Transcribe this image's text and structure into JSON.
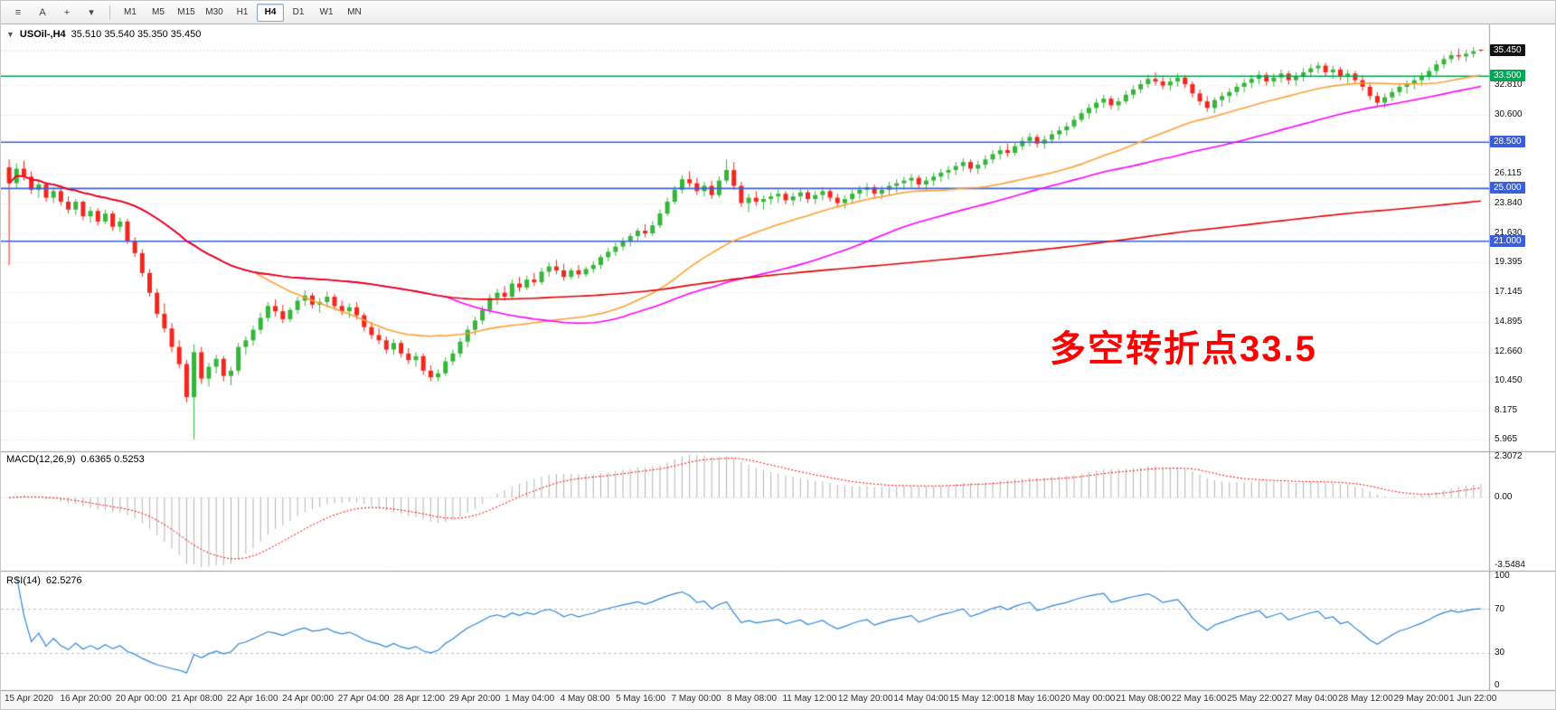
{
  "toolbar": {
    "icons": [
      {
        "name": "chart-bars-icon",
        "glyph": "≡"
      },
      {
        "name": "annotate-a-icon",
        "glyph": "A"
      },
      {
        "name": "crosshair-icon",
        "glyph": "+"
      },
      {
        "name": "indicator-dropdown-icon",
        "glyph": "▾"
      }
    ],
    "timeframes": [
      {
        "label": "M1",
        "selected": false
      },
      {
        "label": "M5",
        "selected": false
      },
      {
        "label": "M15",
        "selected": false
      },
      {
        "label": "M30",
        "selected": false
      },
      {
        "label": "H1",
        "selected": false
      },
      {
        "label": "H4",
        "selected": true
      },
      {
        "label": "D1",
        "selected": false
      },
      {
        "label": "W1",
        "selected": false
      },
      {
        "label": "MN",
        "selected": false
      }
    ]
  },
  "chart": {
    "collapse_icon": "▼",
    "title_symbol": "USOil-,H4",
    "ohlc": "35.510 35.540 35.350 35.450",
    "annotation": {
      "text": "多空转折点33.5",
      "color": "#FF0000"
    },
    "price_ticks": [
      32.81,
      30.6,
      26.115,
      23.84,
      21.63,
      19.395,
      17.145,
      14.895,
      12.66,
      10.45,
      8.175,
      5.965
    ],
    "current_price": {
      "label": "35.450",
      "bg": "#111111",
      "color": "#ffffff"
    }
  },
  "macd": {
    "label": "MACD(12,26,9)",
    "values": "0.6365 0.5253",
    "scale": {
      "top": "2.3072",
      "mid": "0.00",
      "bottom": "-3.5484"
    },
    "colors": {
      "histogram": "#b4b4b4",
      "signal": "#ff0000"
    }
  },
  "rsi": {
    "label": "RSI(14)",
    "value": "62.5276",
    "levels": [
      "100",
      "70",
      "30",
      "0"
    ],
    "color": "#2e86d8"
  },
  "time_axis": [
    "15 Apr 2020",
    "16 Apr 20:00",
    "20 Apr 00:00",
    "21 Apr 08:00",
    "22 Apr 16:00",
    "24 Apr 00:00",
    "27 Apr 04:00",
    "28 Apr 12:00",
    "29 Apr 20:00",
    "1 May 04:00",
    "4 May 08:00",
    "5 May 16:00",
    "7 May 00:00",
    "8 May 08:00",
    "11 May 12:00",
    "12 May 20:00",
    "14 May 04:00",
    "15 May 12:00",
    "18 May 16:00",
    "20 May 00:00",
    "21 May 08:00",
    "22 May 16:00",
    "25 May 22:00",
    "27 May 04:00",
    "28 May 12:00",
    "29 May 20:00",
    "1 Jun 22:00"
  ],
  "chart_data": {
    "type": "candlestick",
    "symbol": "USOil",
    "timeframe": "H4",
    "title": "USOil-,H4 35.510 35.540 35.350 35.450",
    "y_range": [
      5.3,
      37.15
    ],
    "up_color": "#35b53a",
    "down_color": "#f3261d",
    "grid": true,
    "hlines": [
      {
        "value": 33.5,
        "label": "33.500",
        "color": "#00A651"
      },
      {
        "value": 28.5,
        "label": "28.500",
        "color": "#3A5FD9"
      },
      {
        "value": 25.0,
        "label": "25.000",
        "color": "#3A5FD9"
      },
      {
        "value": 21.0,
        "label": "21.000",
        "color": "#3A5FD9"
      }
    ],
    "moving_averages": [
      {
        "name": "ma-fast-orange",
        "period": 34,
        "color": "#ffa033"
      },
      {
        "name": "ma-mid-magenta",
        "period": 60,
        "color": "#ff00ff"
      },
      {
        "name": "ma-slow-red",
        "period": 200,
        "color": "#e60000"
      }
    ],
    "indicators": {
      "macd": {
        "fast": 12,
        "slow": 26,
        "signal": 9,
        "current_main": 0.6365,
        "current_signal": 0.5253
      },
      "rsi": {
        "period": 14,
        "current": 62.5276,
        "levels": [
          70,
          30
        ]
      }
    },
    "candles": [
      [
        26.6,
        27.2,
        19.2,
        25.4
      ],
      [
        25.4,
        26.9,
        25.0,
        26.5
      ],
      [
        26.5,
        27.1,
        25.6,
        25.9
      ],
      [
        25.9,
        26.3,
        24.6,
        24.9
      ],
      [
        24.9,
        25.6,
        24.3,
        25.3
      ],
      [
        25.3,
        25.5,
        24.0,
        24.3
      ],
      [
        24.3,
        25.1,
        23.9,
        24.8
      ],
      [
        24.8,
        25.0,
        23.7,
        24.0
      ],
      [
        24.0,
        24.4,
        23.1,
        23.4
      ],
      [
        23.4,
        24.2,
        23.0,
        24.0
      ],
      [
        24.0,
        24.1,
        22.6,
        22.9
      ],
      [
        22.9,
        23.6,
        22.4,
        23.3
      ],
      [
        23.3,
        23.5,
        22.2,
        22.5
      ],
      [
        22.5,
        23.4,
        22.3,
        23.1
      ],
      [
        23.1,
        23.3,
        21.8,
        22.1
      ],
      [
        22.1,
        22.8,
        21.7,
        22.5
      ],
      [
        22.5,
        22.7,
        20.8,
        21.0
      ],
      [
        21.0,
        21.3,
        19.8,
        20.1
      ],
      [
        20.1,
        20.4,
        18.3,
        18.6
      ],
      [
        18.6,
        18.9,
        16.8,
        17.1
      ],
      [
        17.1,
        17.4,
        15.2,
        15.5
      ],
      [
        15.5,
        16.3,
        14.1,
        14.4
      ],
      [
        14.4,
        14.8,
        12.6,
        13.0
      ],
      [
        13.0,
        13.5,
        11.4,
        11.7
      ],
      [
        11.7,
        12.0,
        8.8,
        9.2
      ],
      [
        9.2,
        13.2,
        6.0,
        12.6
      ],
      [
        12.6,
        13.0,
        10.2,
        10.6
      ],
      [
        10.6,
        11.8,
        10.0,
        11.5
      ],
      [
        11.5,
        12.4,
        11.0,
        12.1
      ],
      [
        12.1,
        12.3,
        10.4,
        10.8
      ],
      [
        10.8,
        11.5,
        10.1,
        11.2
      ],
      [
        11.2,
        13.3,
        10.9,
        13.0
      ],
      [
        13.0,
        13.8,
        12.4,
        13.5
      ],
      [
        13.5,
        14.6,
        13.1,
        14.3
      ],
      [
        14.3,
        15.6,
        14.0,
        15.2
      ],
      [
        15.2,
        16.4,
        14.9,
        16.1
      ],
      [
        16.1,
        16.6,
        15.3,
        15.7
      ],
      [
        15.7,
        16.2,
        14.8,
        15.1
      ],
      [
        15.1,
        16.0,
        14.9,
        15.8
      ],
      [
        15.8,
        16.8,
        15.5,
        16.5
      ],
      [
        16.5,
        17.3,
        16.1,
        16.9
      ],
      [
        16.9,
        17.1,
        15.9,
        16.2
      ],
      [
        16.2,
        16.7,
        15.6,
        16.4
      ],
      [
        16.4,
        17.2,
        16.0,
        16.8
      ],
      [
        16.8,
        17.0,
        15.8,
        16.1
      ],
      [
        16.1,
        16.5,
        15.4,
        15.7
      ],
      [
        15.7,
        16.3,
        15.2,
        16.0
      ],
      [
        16.0,
        16.4,
        15.1,
        15.4
      ],
      [
        15.4,
        15.6,
        14.2,
        14.5
      ],
      [
        14.5,
        14.9,
        13.6,
        13.9
      ],
      [
        13.9,
        14.4,
        13.2,
        13.5
      ],
      [
        13.5,
        13.8,
        12.5,
        12.8
      ],
      [
        12.8,
        13.6,
        12.4,
        13.3
      ],
      [
        13.3,
        13.5,
        12.2,
        12.5
      ],
      [
        12.5,
        12.9,
        11.7,
        12.0
      ],
      [
        12.0,
        12.6,
        11.5,
        12.3
      ],
      [
        12.3,
        12.5,
        10.9,
        11.2
      ],
      [
        11.2,
        11.6,
        10.4,
        10.7
      ],
      [
        10.7,
        11.3,
        10.4,
        11.0
      ],
      [
        11.0,
        12.2,
        10.8,
        11.9
      ],
      [
        11.9,
        12.8,
        11.6,
        12.5
      ],
      [
        12.5,
        13.7,
        12.2,
        13.4
      ],
      [
        13.4,
        14.6,
        13.0,
        14.3
      ],
      [
        14.3,
        15.3,
        13.9,
        15.0
      ],
      [
        15.0,
        16.1,
        14.7,
        15.8
      ],
      [
        15.8,
        17.0,
        15.5,
        16.7
      ],
      [
        16.7,
        17.4,
        16.2,
        17.1
      ],
      [
        17.1,
        17.6,
        16.5,
        16.8
      ],
      [
        16.8,
        18.1,
        16.6,
        17.8
      ],
      [
        17.8,
        18.3,
        17.2,
        17.5
      ],
      [
        17.5,
        18.4,
        17.3,
        18.1
      ],
      [
        18.1,
        18.6,
        17.6,
        17.9
      ],
      [
        17.9,
        19.0,
        17.7,
        18.7
      ],
      [
        18.7,
        19.4,
        18.3,
        19.1
      ],
      [
        19.1,
        19.6,
        18.5,
        18.8
      ],
      [
        18.8,
        19.3,
        18.0,
        18.3
      ],
      [
        18.3,
        19.0,
        18.1,
        18.8
      ],
      [
        18.8,
        19.2,
        18.2,
        18.5
      ],
      [
        18.5,
        19.1,
        18.3,
        18.9
      ],
      [
        18.9,
        19.5,
        18.6,
        19.2
      ],
      [
        19.2,
        20.0,
        18.9,
        19.8
      ],
      [
        19.8,
        20.5,
        19.5,
        20.2
      ],
      [
        20.2,
        20.9,
        19.9,
        20.6
      ],
      [
        20.6,
        21.3,
        20.3,
        21.0
      ],
      [
        21.0,
        21.6,
        20.6,
        21.4
      ],
      [
        21.4,
        22.0,
        21.0,
        21.8
      ],
      [
        21.8,
        22.3,
        21.3,
        21.6
      ],
      [
        21.6,
        22.5,
        21.4,
        22.2
      ],
      [
        22.2,
        23.4,
        22.0,
        23.1
      ],
      [
        23.1,
        24.3,
        22.9,
        24.0
      ],
      [
        24.0,
        25.2,
        23.8,
        24.9
      ],
      [
        24.9,
        26.0,
        24.6,
        25.7
      ],
      [
        25.7,
        26.3,
        25.1,
        25.4
      ],
      [
        25.4,
        25.8,
        24.5,
        24.8
      ],
      [
        24.8,
        25.5,
        24.4,
        25.2
      ],
      [
        25.2,
        25.6,
        24.2,
        24.5
      ],
      [
        24.5,
        25.9,
        24.3,
        25.6
      ],
      [
        25.6,
        27.2,
        25.4,
        26.4
      ],
      [
        26.4,
        27.0,
        24.9,
        25.2
      ],
      [
        25.2,
        25.5,
        23.6,
        23.9
      ],
      [
        23.9,
        24.6,
        23.2,
        24.3
      ],
      [
        24.3,
        24.8,
        23.7,
        24.0
      ],
      [
        24.0,
        24.5,
        23.4,
        24.2
      ],
      [
        24.2,
        24.7,
        23.8,
        24.4
      ],
      [
        24.4,
        24.9,
        23.9,
        24.6
      ],
      [
        24.6,
        24.8,
        23.8,
        24.1
      ],
      [
        24.1,
        24.7,
        23.7,
        24.4
      ],
      [
        24.4,
        25.0,
        24.0,
        24.7
      ],
      [
        24.7,
        24.9,
        23.9,
        24.2
      ],
      [
        24.2,
        24.8,
        23.8,
        24.5
      ],
      [
        24.5,
        25.1,
        24.1,
        24.8
      ],
      [
        24.8,
        25.0,
        24.0,
        24.3
      ],
      [
        24.3,
        24.6,
        23.6,
        23.9
      ],
      [
        23.9,
        24.5,
        23.5,
        24.2
      ],
      [
        24.2,
        24.9,
        23.9,
        24.6
      ],
      [
        24.6,
        25.2,
        24.2,
        24.9
      ],
      [
        24.9,
        25.4,
        24.4,
        25.1
      ],
      [
        25.1,
        25.3,
        24.3,
        24.6
      ],
      [
        24.6,
        25.2,
        24.2,
        24.9
      ],
      [
        24.9,
        25.5,
        24.5,
        25.2
      ],
      [
        25.2,
        25.7,
        24.7,
        25.4
      ],
      [
        25.4,
        25.9,
        24.9,
        25.6
      ],
      [
        25.6,
        26.1,
        25.1,
        25.8
      ],
      [
        25.8,
        26.0,
        25.0,
        25.3
      ],
      [
        25.3,
        25.9,
        24.9,
        25.6
      ],
      [
        25.6,
        26.2,
        25.2,
        25.9
      ],
      [
        25.9,
        26.5,
        25.5,
        26.2
      ],
      [
        26.2,
        26.7,
        25.7,
        26.4
      ],
      [
        26.4,
        27.0,
        26.0,
        26.7
      ],
      [
        26.7,
        27.3,
        26.3,
        27.0
      ],
      [
        27.0,
        27.2,
        26.2,
        26.5
      ],
      [
        26.5,
        27.1,
        26.1,
        26.8
      ],
      [
        26.8,
        27.5,
        26.5,
        27.2
      ],
      [
        27.2,
        27.9,
        26.9,
        27.6
      ],
      [
        27.6,
        28.2,
        27.2,
        27.9
      ],
      [
        27.9,
        28.4,
        27.4,
        27.7
      ],
      [
        27.7,
        28.5,
        27.5,
        28.2
      ],
      [
        28.2,
        28.9,
        27.9,
        28.6
      ],
      [
        28.6,
        29.2,
        28.2,
        28.9
      ],
      [
        28.9,
        29.1,
        28.1,
        28.4
      ],
      [
        28.4,
        29.0,
        28.0,
        28.7
      ],
      [
        28.7,
        29.4,
        28.4,
        29.1
      ],
      [
        29.1,
        29.7,
        28.7,
        29.4
      ],
      [
        29.4,
        30.0,
        29.0,
        29.7
      ],
      [
        29.7,
        30.5,
        29.5,
        30.2
      ],
      [
        30.2,
        31.0,
        30.0,
        30.7
      ],
      [
        30.7,
        31.4,
        30.3,
        31.1
      ],
      [
        31.1,
        31.8,
        30.7,
        31.5
      ],
      [
        31.5,
        32.1,
        31.1,
        31.8
      ],
      [
        31.8,
        32.0,
        31.0,
        31.3
      ],
      [
        31.3,
        31.9,
        30.9,
        31.6
      ],
      [
        31.6,
        32.4,
        31.4,
        32.1
      ],
      [
        32.1,
        32.8,
        31.8,
        32.5
      ],
      [
        32.5,
        33.2,
        32.2,
        32.9
      ],
      [
        32.9,
        33.6,
        32.6,
        33.3
      ],
      [
        33.3,
        33.8,
        32.8,
        33.1
      ],
      [
        33.1,
        33.5,
        32.5,
        32.8
      ],
      [
        32.8,
        33.4,
        32.4,
        33.1
      ],
      [
        33.1,
        33.7,
        32.7,
        33.4
      ],
      [
        33.4,
        33.6,
        32.6,
        32.9
      ],
      [
        32.9,
        33.1,
        31.9,
        32.2
      ],
      [
        32.2,
        32.5,
        31.3,
        31.6
      ],
      [
        31.6,
        32.0,
        30.8,
        31.1
      ],
      [
        31.1,
        31.9,
        30.7,
        31.7
      ],
      [
        31.7,
        32.3,
        31.2,
        32.0
      ],
      [
        32.0,
        32.6,
        31.5,
        32.3
      ],
      [
        32.3,
        33.0,
        32.0,
        32.7
      ],
      [
        32.7,
        33.3,
        32.3,
        33.0
      ],
      [
        33.0,
        33.6,
        32.6,
        33.3
      ],
      [
        33.3,
        33.9,
        32.9,
        33.6
      ],
      [
        33.6,
        33.8,
        32.8,
        33.1
      ],
      [
        33.1,
        33.7,
        32.7,
        33.4
      ],
      [
        33.4,
        34.0,
        33.0,
        33.7
      ],
      [
        33.7,
        33.9,
        32.9,
        33.2
      ],
      [
        33.2,
        33.8,
        32.8,
        33.5
      ],
      [
        33.5,
        34.1,
        33.1,
        33.8
      ],
      [
        33.8,
        34.4,
        33.4,
        34.1
      ],
      [
        34.1,
        34.6,
        33.7,
        34.3
      ],
      [
        34.3,
        34.5,
        33.5,
        33.8
      ],
      [
        33.8,
        34.3,
        33.3,
        34.0
      ],
      [
        34.0,
        34.2,
        33.2,
        33.5
      ],
      [
        33.5,
        34.0,
        33.0,
        33.7
      ],
      [
        33.7,
        33.9,
        32.9,
        33.2
      ],
      [
        33.2,
        33.6,
        32.4,
        32.7
      ],
      [
        32.7,
        32.9,
        31.7,
        32.0
      ],
      [
        32.0,
        32.3,
        31.2,
        31.5
      ],
      [
        31.5,
        32.2,
        31.1,
        31.9
      ],
      [
        31.9,
        32.6,
        31.6,
        32.3
      ],
      [
        32.3,
        33.0,
        32.0,
        32.7
      ],
      [
        32.7,
        33.2,
        32.2,
        32.9
      ],
      [
        32.9,
        33.5,
        32.5,
        33.2
      ],
      [
        33.2,
        33.8,
        32.8,
        33.5
      ],
      [
        33.5,
        34.2,
        33.2,
        33.9
      ],
      [
        33.9,
        34.7,
        33.6,
        34.4
      ],
      [
        34.4,
        35.1,
        34.1,
        34.8
      ],
      [
        34.8,
        35.4,
        34.5,
        35.1
      ],
      [
        35.1,
        35.6,
        34.7,
        35.0
      ],
      [
        35.0,
        35.5,
        34.6,
        35.2
      ],
      [
        35.2,
        35.7,
        34.9,
        35.4
      ],
      [
        35.51,
        35.54,
        35.35,
        35.45
      ]
    ]
  }
}
